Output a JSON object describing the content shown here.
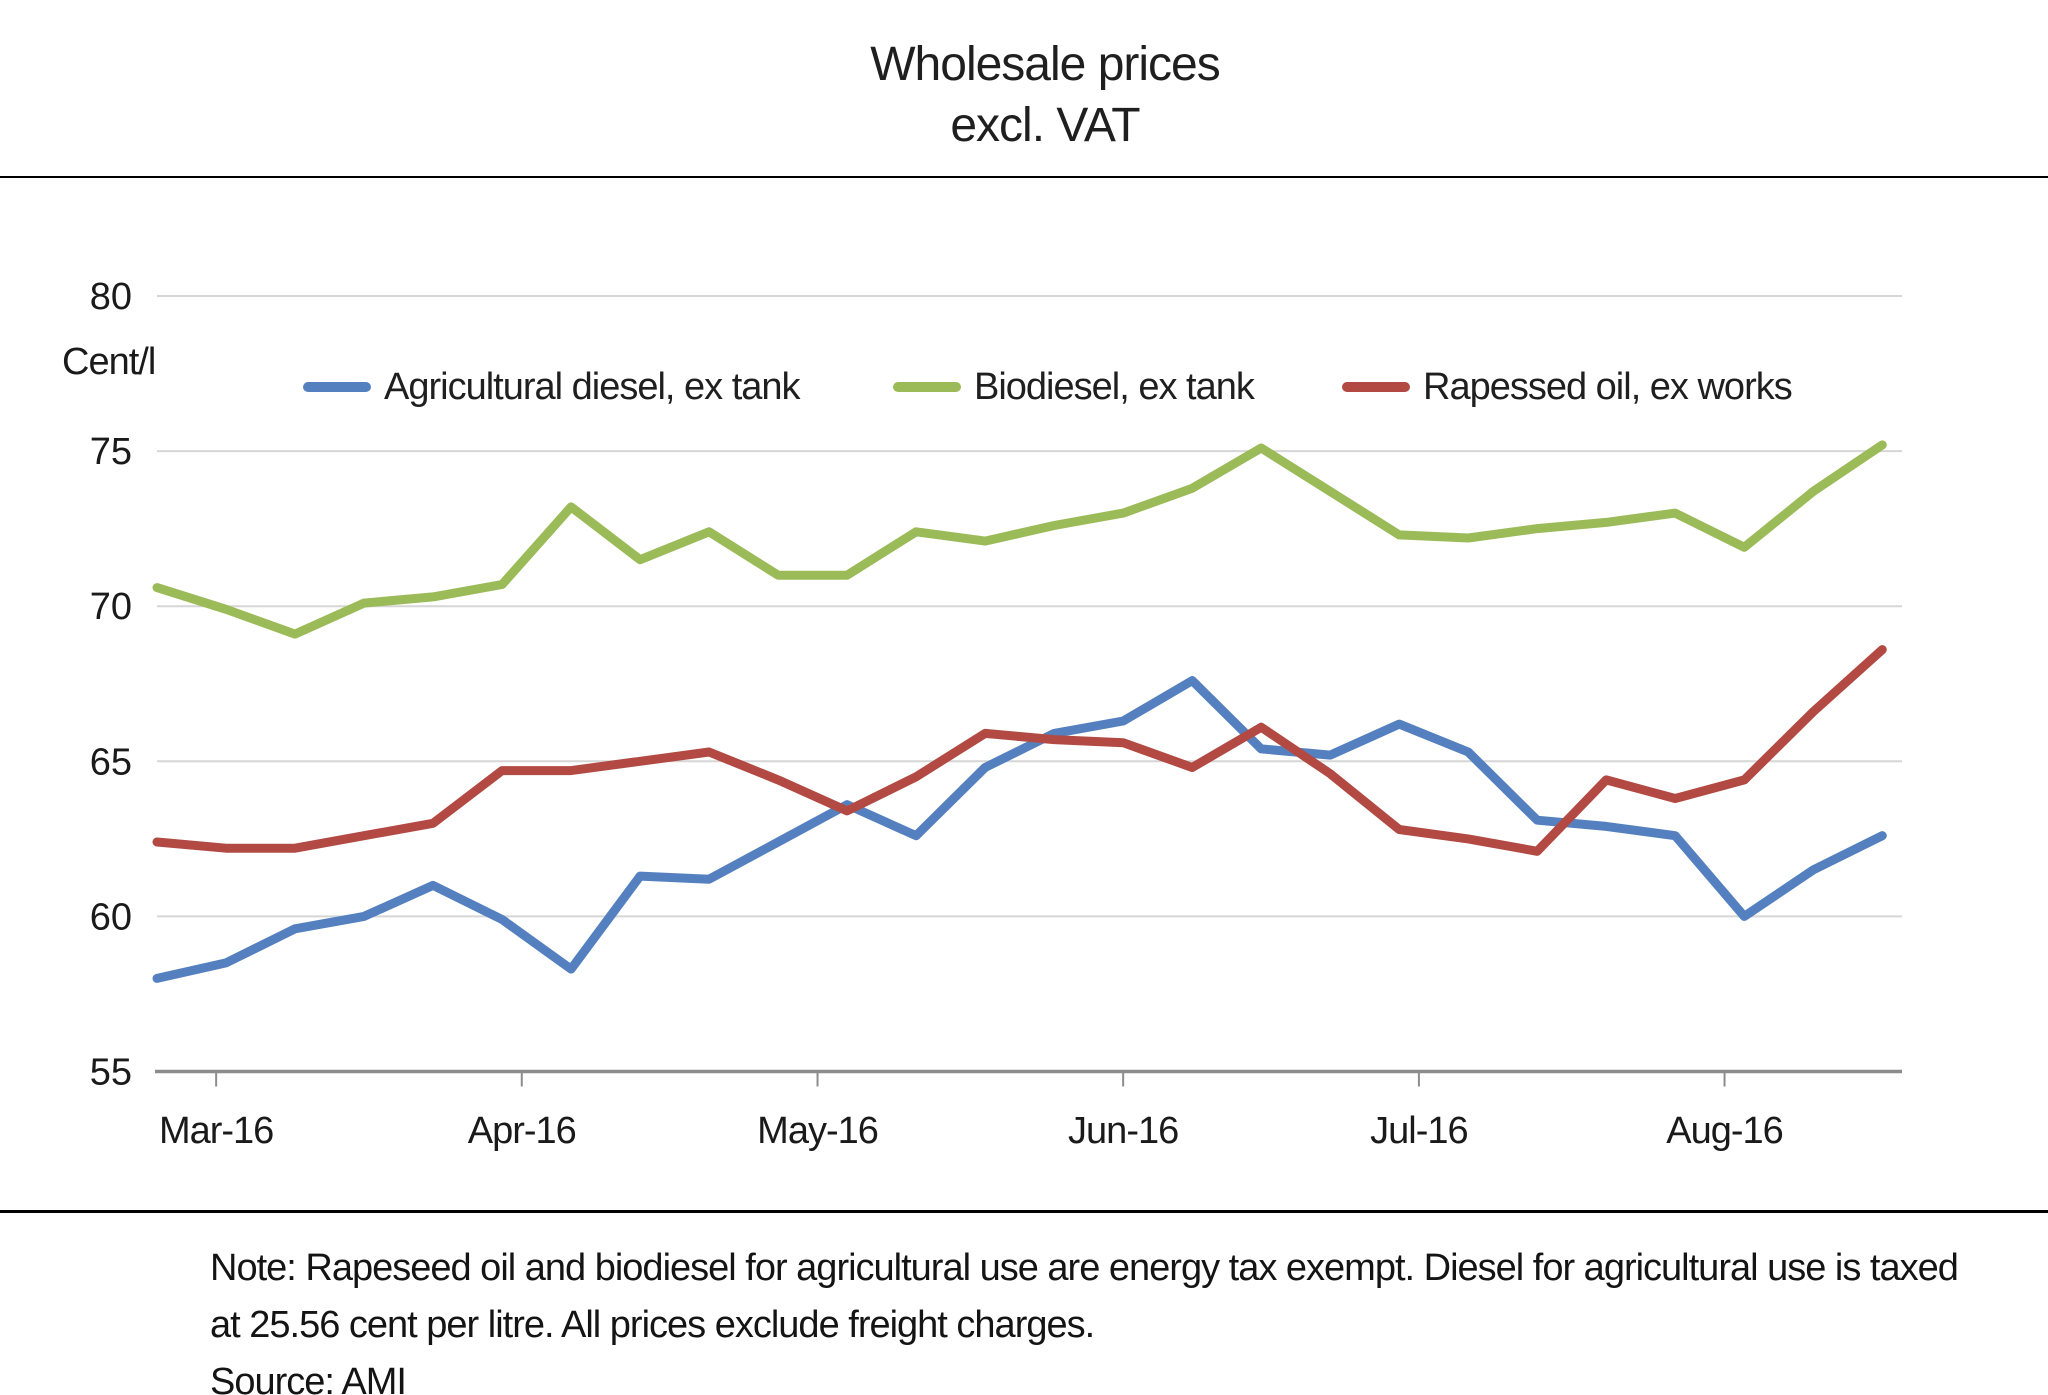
{
  "title": {
    "line1": "Wholesale prices",
    "line2": "excl. VAT"
  },
  "y_axis": {
    "unit_label": "Cent/l",
    "tick_labels": [
      "80",
      "75",
      "70",
      "65",
      "60",
      "55"
    ]
  },
  "x_axis": {
    "tick_labels": [
      "Mar-16",
      "Apr-16",
      "May-16",
      "Jun-16",
      "Jul-16",
      "Aug-16"
    ]
  },
  "legend": [
    {
      "label": "Agricultural diesel, ex tank",
      "color": "#5580BF"
    },
    {
      "label": "Biodiesel, ex tank",
      "color": "#9BBB59"
    },
    {
      "label": "Rapessed oil, ex works",
      "color": "#B24A43"
    }
  ],
  "note": {
    "line1": "Note:  Rapeseed oil and biodiesel for agricultural use are energy tax exempt. Diesel for agricultural use is taxed",
    "line2": "at 25.56 cent per litre. All prices exclude freight charges.",
    "source": "Source: AMI"
  },
  "chart_data": {
    "type": "line",
    "title": "Wholesale prices excl. VAT",
    "ylabel": "Cent/l",
    "ylim": [
      55,
      80
    ],
    "y_ticks": [
      80,
      75,
      70,
      65,
      60,
      55
    ],
    "grid": true,
    "legend_position": "inside-top",
    "x_is_weekly_dates": true,
    "x_total_days": 177,
    "x_point_day_step": 7,
    "x_tick_labels": [
      "Mar-16",
      "Apr-16",
      "May-16",
      "Jun-16",
      "Jul-16",
      "Aug-16"
    ],
    "x_tick_day_offsets": [
      6,
      37,
      67,
      98,
      128,
      159
    ],
    "series": [
      {
        "name": "Agricultural diesel, ex tank",
        "color": "#5580BF",
        "values": [
          58.0,
          58.5,
          59.6,
          60.0,
          61.0,
          59.9,
          58.3,
          61.3,
          61.2,
          62.4,
          63.6,
          62.6,
          64.8,
          65.9,
          66.3,
          67.6,
          65.4,
          65.2,
          66.2,
          65.3,
          63.1,
          62.9,
          62.6,
          60.0,
          61.5,
          62.6
        ]
      },
      {
        "name": "Biodiesel, ex tank",
        "color": "#9BBB59",
        "values": [
          70.6,
          69.9,
          69.1,
          70.1,
          70.3,
          70.7,
          73.2,
          71.5,
          72.4,
          71.0,
          71.0,
          72.4,
          72.1,
          72.6,
          73.0,
          73.8,
          75.1,
          73.7,
          72.3,
          72.2,
          72.5,
          72.7,
          73.0,
          71.9,
          73.7,
          75.2
        ]
      },
      {
        "name": "Rapessed oil, ex works",
        "color": "#B24A43",
        "values": [
          62.4,
          62.2,
          62.2,
          62.6,
          63.0,
          64.7,
          64.7,
          65.0,
          65.3,
          64.4,
          63.4,
          64.5,
          65.9,
          65.7,
          65.6,
          64.8,
          66.1,
          64.6,
          62.8,
          62.5,
          62.1,
          64.4,
          63.8,
          64.4,
          66.6,
          68.6
        ]
      }
    ]
  }
}
